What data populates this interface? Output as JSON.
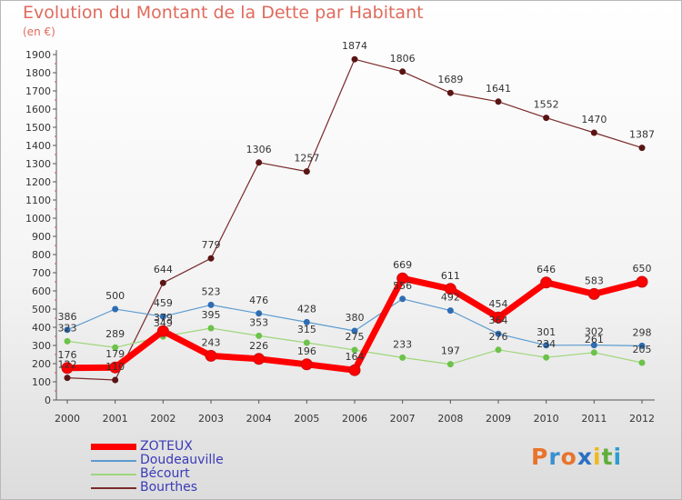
{
  "title": "Evolution du Montant de la Dette par Habitant",
  "subtitle": "(en €)",
  "brand": {
    "letters": [
      "P",
      "r",
      "o",
      "x",
      "i",
      "t",
      "i"
    ],
    "colors": [
      "#e8742c",
      "#3a8fd0",
      "#e8742c",
      "#2b6fc4",
      "#f0b820",
      "#5fae3a",
      "#2b9ed0"
    ]
  },
  "chart_data": {
    "type": "line",
    "x": [
      2000,
      2001,
      2002,
      2003,
      2004,
      2005,
      2006,
      2007,
      2008,
      2009,
      2010,
      2011,
      2012
    ],
    "ylim": [
      0,
      1900
    ],
    "yticks": [
      0,
      100,
      200,
      300,
      400,
      500,
      600,
      700,
      800,
      900,
      1000,
      1100,
      1200,
      1300,
      1400,
      1500,
      1600,
      1700,
      1800,
      1900
    ],
    "grid": false,
    "legend_position": "bottom-left",
    "series": [
      {
        "name": "ZOTEUX",
        "color": "#ff0000",
        "marker": "#c81010",
        "width": 7,
        "values": [
          176,
          179,
          379,
          243,
          226,
          196,
          164,
          669,
          611,
          454,
          646,
          583,
          650
        ]
      },
      {
        "name": "Doudeauville",
        "color": "#5c9bd0",
        "marker": "#2f6db3",
        "width": 1.2,
        "values": [
          386,
          500,
          459,
          523,
          476,
          428,
          380,
          556,
          492,
          364,
          301,
          302,
          298
        ]
      },
      {
        "name": "Bécourt",
        "color": "#9ed67a",
        "marker": "#6cc24a",
        "width": 1.2,
        "values": [
          323,
          289,
          349,
          395,
          353,
          315,
          275,
          233,
          197,
          276,
          234,
          261,
          205
        ]
      },
      {
        "name": "Bourthes",
        "color": "#7a2a2a",
        "marker": "#5a1414",
        "width": 1.2,
        "values": [
          122,
          110,
          644,
          779,
          1306,
          1257,
          1874,
          1806,
          1689,
          1641,
          1552,
          1470,
          1387
        ]
      }
    ],
    "data_labels": [
      [
        "176",
        "179",
        "379",
        "243",
        "226",
        "196",
        "164",
        "669",
        "611",
        "454",
        "646",
        "583",
        "650"
      ],
      [
        "386",
        "500",
        "459",
        "523",
        "476",
        "428",
        "380",
        "556",
        "492",
        "364",
        "301",
        "302",
        "298"
      ],
      [
        "323",
        "289",
        "349",
        "395",
        "353",
        "315",
        "275",
        "233",
        "197",
        "276",
        "234",
        "261",
        "205"
      ],
      [
        "122",
        "110",
        "644",
        "779",
        "1306",
        "1257",
        "1874",
        "1806",
        "1689",
        "1641",
        "1552",
        "1470",
        "1387"
      ]
    ]
  }
}
